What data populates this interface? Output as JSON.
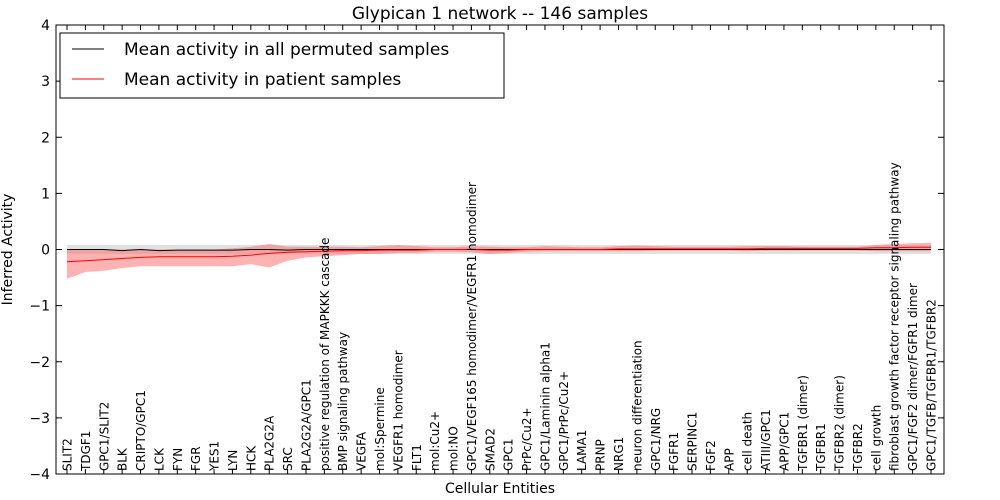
{
  "chart_data": {
    "type": "line",
    "title": "Glypican 1 network -- 146 samples",
    "xlabel": "Cellular Entities",
    "ylabel": "Inferred Activity",
    "ylim": [
      -4,
      4
    ],
    "yticks": [
      -4,
      -3,
      -2,
      -1,
      0,
      1,
      2,
      3,
      4
    ],
    "grid": false,
    "legend_position": "top-left",
    "categories": [
      "SLIT2",
      "TDGF1",
      "GPC1/SLIT2",
      "BLK",
      "CRIPTO/GPC1",
      "LCK",
      "FYN",
      "FGR",
      "YES1",
      "LYN",
      "HCK",
      "PLA2G2A",
      "SRC",
      "PLA2G2A/GPC1",
      "positive regulation of MAPKKK cascade",
      "BMP signaling pathway",
      "VEGFA",
      "mol:Spermine",
      "VEGFR1 homodimer",
      "FLT1",
      "mol:Cu2+",
      "mol:NO",
      "GPC1/VEGF165 homodimer/VEGFR1 homodimer",
      "SMAD2",
      "GPC1",
      "PrPc/Cu2+",
      "GPC1/Laminin alpha1",
      "GPC1/PrPc/Cu2+",
      "LAMA1",
      "PRNP",
      "NRG1",
      "neuron differentiation",
      "GPC1/NRG",
      "FGFR1",
      "SERPINC1",
      "FGF2",
      "APP",
      "cell death",
      "ATIII/GPC1",
      "APP/GPC1",
      "TGFBR1 (dimer)",
      "TGFBR1",
      "TGFBR2 (dimer)",
      "TGFBR2",
      "cell growth",
      "fibroblast growth factor receptor signaling pathway",
      "GPC1/FGF2 dimer/FGFR1 dimer",
      "GPC1/TGFB/TGFBR1/TGFBR2"
    ],
    "series": [
      {
        "name": "Mean activity in all permuted samples",
        "color": "#000000",
        "band_color": "#aaaaaa",
        "values": [
          0.0,
          0.0,
          0.0,
          -0.02,
          0.0,
          -0.02,
          -0.01,
          -0.01,
          -0.01,
          -0.01,
          0.0,
          0.0,
          -0.01,
          0.0,
          0.0,
          0.0,
          0.0,
          0.0,
          0.0,
          0.0,
          0.0,
          0.0,
          0.0,
          0.0,
          0.0,
          0.0,
          0.0,
          0.0,
          0.0,
          0.0,
          0.0,
          0.0,
          0.0,
          0.0,
          0.0,
          0.0,
          0.0,
          0.0,
          0.0,
          0.0,
          0.0,
          0.0,
          0.0,
          0.0,
          0.0,
          0.0,
          0.0,
          0.0
        ],
        "lower": [
          -0.08,
          -0.08,
          -0.08,
          -0.08,
          -0.08,
          -0.08,
          -0.08,
          -0.08,
          -0.08,
          -0.08,
          -0.08,
          -0.08,
          -0.08,
          -0.08,
          -0.08,
          -0.08,
          -0.08,
          -0.08,
          -0.08,
          -0.08,
          -0.08,
          -0.08,
          -0.08,
          -0.08,
          -0.08,
          -0.08,
          -0.08,
          -0.08,
          -0.08,
          -0.08,
          -0.08,
          -0.08,
          -0.08,
          -0.08,
          -0.08,
          -0.08,
          -0.08,
          -0.08,
          -0.08,
          -0.08,
          -0.08,
          -0.08,
          -0.08,
          -0.08,
          -0.08,
          -0.08,
          -0.08,
          -0.08
        ],
        "upper": [
          0.08,
          0.08,
          0.08,
          0.08,
          0.08,
          0.08,
          0.08,
          0.08,
          0.08,
          0.08,
          0.08,
          0.08,
          0.08,
          0.08,
          0.08,
          0.08,
          0.08,
          0.08,
          0.08,
          0.08,
          0.08,
          0.08,
          0.08,
          0.08,
          0.08,
          0.08,
          0.08,
          0.08,
          0.08,
          0.08,
          0.08,
          0.08,
          0.08,
          0.08,
          0.08,
          0.08,
          0.08,
          0.08,
          0.08,
          0.08,
          0.08,
          0.08,
          0.08,
          0.08,
          0.08,
          0.08,
          0.08,
          0.08
        ]
      },
      {
        "name": "Mean activity in patient samples",
        "color": "#ff0000",
        "band_color": "#ff6666",
        "values": [
          -0.22,
          -0.2,
          -0.18,
          -0.16,
          -0.14,
          -0.13,
          -0.13,
          -0.13,
          -0.13,
          -0.12,
          -0.1,
          -0.07,
          -0.05,
          -0.04,
          -0.03,
          -0.02,
          -0.02,
          -0.01,
          -0.01,
          -0.01,
          0.0,
          0.0,
          0.0,
          -0.01,
          -0.01,
          0.0,
          0.0,
          0.0,
          0.0,
          0.0,
          0.01,
          0.01,
          0.01,
          0.01,
          0.01,
          0.01,
          0.01,
          0.01,
          0.02,
          0.02,
          0.02,
          0.02,
          0.02,
          0.02,
          0.03,
          0.03,
          0.04,
          0.04
        ],
        "lower": [
          -0.52,
          -0.4,
          -0.38,
          -0.33,
          -0.3,
          -0.3,
          -0.3,
          -0.3,
          -0.3,
          -0.3,
          -0.26,
          -0.32,
          -0.2,
          -0.14,
          -0.12,
          -0.1,
          -0.08,
          -0.08,
          -0.06,
          -0.06,
          -0.04,
          -0.04,
          -0.05,
          -0.08,
          -0.06,
          -0.04,
          -0.03,
          -0.03,
          -0.03,
          -0.03,
          -0.03,
          -0.03,
          -0.02,
          -0.02,
          -0.02,
          -0.02,
          -0.02,
          -0.03,
          -0.02,
          -0.02,
          -0.02,
          -0.02,
          -0.02,
          -0.02,
          -0.03,
          -0.03,
          -0.03,
          -0.03
        ],
        "upper": [
          0.0,
          0.0,
          0.0,
          0.0,
          0.0,
          0.0,
          0.0,
          0.0,
          0.0,
          0.02,
          0.05,
          0.1,
          0.05,
          0.05,
          0.05,
          0.05,
          0.04,
          0.06,
          0.08,
          0.06,
          0.04,
          0.04,
          0.06,
          0.05,
          0.04,
          0.04,
          0.06,
          0.05,
          0.04,
          0.04,
          0.06,
          0.07,
          0.06,
          0.05,
          0.05,
          0.05,
          0.05,
          0.06,
          0.06,
          0.06,
          0.05,
          0.05,
          0.05,
          0.05,
          0.08,
          0.1,
          0.11,
          0.12
        ]
      }
    ]
  }
}
